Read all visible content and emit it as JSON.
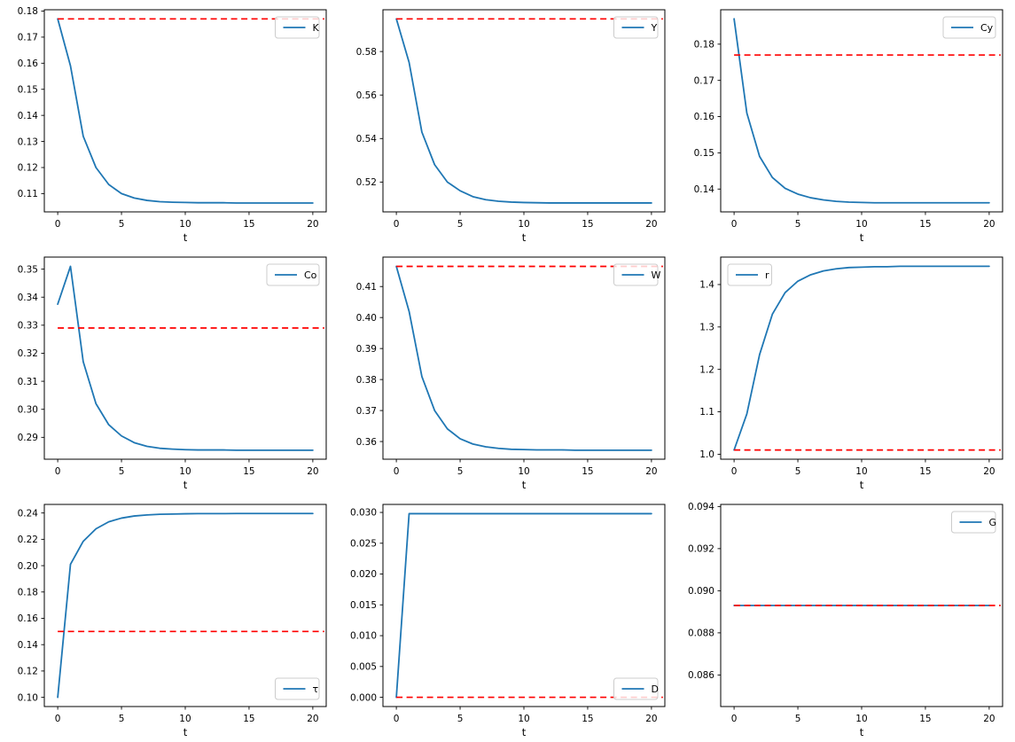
{
  "figure": {
    "xlabel": "t",
    "x_ticks": [
      0,
      5,
      10,
      15,
      20
    ],
    "xlim": [
      -1.05,
      21.05
    ],
    "colors": {
      "series": "#1f77b4",
      "steady_state": "#ff0000",
      "frame": "#000000",
      "legend_border": "#cccccc",
      "background": "#ffffff",
      "text": "#000000"
    }
  },
  "chart_data": [
    {
      "type": "line",
      "name": "K",
      "legend": "K",
      "legend_pos": "upper-right",
      "xlabel": "t",
      "x": [
        0,
        1,
        2,
        3,
        4,
        5,
        6,
        7,
        8,
        9,
        10,
        11,
        12,
        13,
        14,
        15,
        16,
        17,
        18,
        19,
        20
      ],
      "values": [
        0.177,
        0.159,
        0.132,
        0.12,
        0.1135,
        0.11,
        0.1083,
        0.1074,
        0.1069,
        0.1067,
        0.1066,
        0.1065,
        0.1065,
        0.1065,
        0.1064,
        0.1064,
        0.1064,
        0.1064,
        0.1064,
        0.1064,
        0.1064
      ],
      "steady_state": 0.177,
      "ylim": [
        0.103,
        0.1805
      ],
      "yticks": [
        0.11,
        0.12,
        0.13,
        0.14,
        0.15,
        0.16,
        0.17,
        0.18
      ],
      "ydecimals": 2
    },
    {
      "type": "line",
      "name": "Y",
      "legend": "Y",
      "legend_pos": "upper-right",
      "xlabel": "t",
      "x": [
        0,
        1,
        2,
        3,
        4,
        5,
        6,
        7,
        8,
        9,
        10,
        11,
        12,
        13,
        14,
        15,
        16,
        17,
        18,
        19,
        20
      ],
      "values": [
        0.595,
        0.575,
        0.543,
        0.528,
        0.52,
        0.516,
        0.5133,
        0.5119,
        0.5112,
        0.5108,
        0.5106,
        0.5105,
        0.5104,
        0.5104,
        0.5104,
        0.5104,
        0.5104,
        0.5104,
        0.5104,
        0.5104,
        0.5104
      ],
      "steady_state": 0.595,
      "ylim": [
        0.5063,
        0.5992
      ],
      "yticks": [
        0.52,
        0.54,
        0.56,
        0.58
      ],
      "ydecimals": 2
    },
    {
      "type": "line",
      "name": "Cy",
      "legend": "Cy",
      "legend_pos": "upper-right",
      "xlabel": "t",
      "x": [
        0,
        1,
        2,
        3,
        4,
        5,
        6,
        7,
        8,
        9,
        10,
        11,
        12,
        13,
        14,
        15,
        16,
        17,
        18,
        19,
        20
      ],
      "values": [
        0.187,
        0.161,
        0.149,
        0.1432,
        0.1402,
        0.1386,
        0.1376,
        0.137,
        0.1366,
        0.1364,
        0.1363,
        0.1362,
        0.1362,
        0.1362,
        0.1362,
        0.1362,
        0.1362,
        0.1362,
        0.1362,
        0.1362,
        0.1362
      ],
      "steady_state": 0.177,
      "ylim": [
        0.1337,
        0.1895
      ],
      "yticks": [
        0.14,
        0.15,
        0.16,
        0.17,
        0.18
      ],
      "ydecimals": 2
    },
    {
      "type": "line",
      "name": "Co",
      "legend": "Co",
      "legend_pos": "upper-right",
      "xlabel": "t",
      "x": [
        0,
        1,
        2,
        3,
        4,
        5,
        6,
        7,
        8,
        9,
        10,
        11,
        12,
        13,
        14,
        15,
        16,
        17,
        18,
        19,
        20
      ],
      "values": [
        0.3375,
        0.351,
        0.317,
        0.302,
        0.2945,
        0.2905,
        0.2881,
        0.2868,
        0.2861,
        0.2858,
        0.2856,
        0.2855,
        0.2855,
        0.2855,
        0.2854,
        0.2854,
        0.2854,
        0.2854,
        0.2854,
        0.2854,
        0.2854
      ],
      "steady_state": 0.329,
      "ylim": [
        0.2822,
        0.3543
      ],
      "yticks": [
        0.29,
        0.3,
        0.31,
        0.32,
        0.33,
        0.34,
        0.35
      ],
      "ydecimals": 2
    },
    {
      "type": "line",
      "name": "W",
      "legend": "W",
      "legend_pos": "upper-right",
      "xlabel": "t",
      "x": [
        0,
        1,
        2,
        3,
        4,
        5,
        6,
        7,
        8,
        9,
        10,
        11,
        12,
        13,
        14,
        15,
        16,
        17,
        18,
        19,
        20
      ],
      "values": [
        0.4165,
        0.402,
        0.381,
        0.37,
        0.3641,
        0.3609,
        0.3592,
        0.3583,
        0.3578,
        0.3575,
        0.3574,
        0.3573,
        0.3573,
        0.3573,
        0.3572,
        0.3572,
        0.3572,
        0.3572,
        0.3572,
        0.3572,
        0.3572
      ],
      "steady_state": 0.4165,
      "ylim": [
        0.3543,
        0.4195
      ],
      "yticks": [
        0.36,
        0.37,
        0.38,
        0.39,
        0.4,
        0.41
      ],
      "ydecimals": 2
    },
    {
      "type": "line",
      "name": "r",
      "legend": "r",
      "legend_pos": "upper-left",
      "xlabel": "t",
      "x": [
        0,
        1,
        2,
        3,
        4,
        5,
        6,
        7,
        8,
        9,
        10,
        11,
        12,
        13,
        14,
        15,
        16,
        17,
        18,
        19,
        20
      ],
      "values": [
        1.01,
        1.095,
        1.235,
        1.33,
        1.381,
        1.408,
        1.423,
        1.432,
        1.437,
        1.44,
        1.441,
        1.442,
        1.442,
        1.443,
        1.443,
        1.443,
        1.443,
        1.443,
        1.443,
        1.443,
        1.443
      ],
      "steady_state": 1.01,
      "ylim": [
        0.9883,
        1.4647
      ],
      "yticks": [
        1.0,
        1.1,
        1.2,
        1.3,
        1.4
      ],
      "ydecimals": 1
    },
    {
      "type": "line",
      "name": "tau",
      "legend": "τ",
      "legend_pos": "lower-right",
      "xlabel": "t",
      "x": [
        0,
        1,
        2,
        3,
        4,
        5,
        6,
        7,
        8,
        9,
        10,
        11,
        12,
        13,
        14,
        15,
        16,
        17,
        18,
        19,
        20
      ],
      "values": [
        0.1,
        0.201,
        0.2185,
        0.228,
        0.2333,
        0.2361,
        0.2377,
        0.2385,
        0.239,
        0.2392,
        0.2394,
        0.2395,
        0.2395,
        0.2395,
        0.2396,
        0.2396,
        0.2396,
        0.2396,
        0.2396,
        0.2396,
        0.2396
      ],
      "steady_state": 0.15,
      "ylim": [
        0.093,
        0.2465
      ],
      "yticks": [
        0.1,
        0.12,
        0.14,
        0.16,
        0.18,
        0.2,
        0.22,
        0.24
      ],
      "ydecimals": 2
    },
    {
      "type": "line",
      "name": "D",
      "legend": "D",
      "legend_pos": "lower-right",
      "xlabel": "t",
      "x": [
        0,
        1,
        2,
        3,
        4,
        5,
        6,
        7,
        8,
        9,
        10,
        11,
        12,
        13,
        14,
        15,
        16,
        17,
        18,
        19,
        20
      ],
      "values": [
        0.0,
        0.0298,
        0.0298,
        0.0298,
        0.0298,
        0.0298,
        0.0298,
        0.0298,
        0.0298,
        0.0298,
        0.0298,
        0.0298,
        0.0298,
        0.0298,
        0.0298,
        0.0298,
        0.0298,
        0.0298,
        0.0298,
        0.0298,
        0.0298
      ],
      "steady_state": 0.0,
      "ylim": [
        -0.0015,
        0.0313
      ],
      "yticks": [
        0.0,
        0.005,
        0.01,
        0.015,
        0.02,
        0.025,
        0.03
      ],
      "ydecimals": 3
    },
    {
      "type": "line",
      "name": "G",
      "legend": "G",
      "legend_pos": "upper-right",
      "xlabel": "t",
      "x": [
        0,
        1,
        2,
        3,
        4,
        5,
        6,
        7,
        8,
        9,
        10,
        11,
        12,
        13,
        14,
        15,
        16,
        17,
        18,
        19,
        20
      ],
      "values": [
        0.0893,
        0.0893,
        0.0893,
        0.0893,
        0.0893,
        0.0893,
        0.0893,
        0.0893,
        0.0893,
        0.0893,
        0.0893,
        0.0893,
        0.0893,
        0.0893,
        0.0893,
        0.0893,
        0.0893,
        0.0893,
        0.0893,
        0.0893,
        0.0893
      ],
      "steady_state": 0.0893,
      "ylim": [
        0.0845,
        0.0941
      ],
      "yticks": [
        0.086,
        0.088,
        0.09,
        0.092,
        0.094
      ],
      "ydecimals": 3
    }
  ]
}
